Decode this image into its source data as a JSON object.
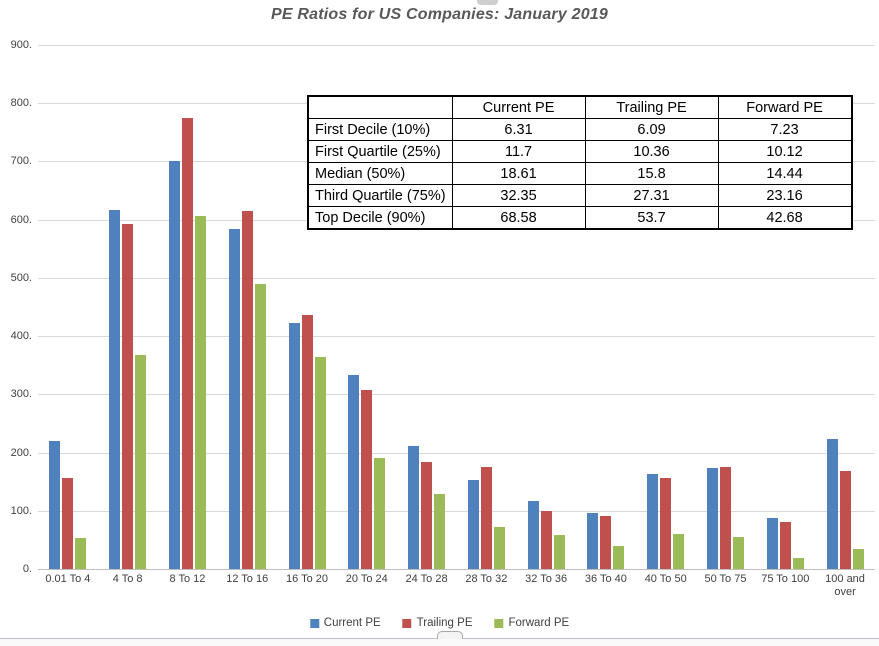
{
  "title": "PE Ratios for US Companies: January 2019",
  "colors": {
    "current_pe": "#4F81BD",
    "trailing_pe": "#C0504D",
    "forward_pe": "#9BBB59",
    "gridline": "#D9D9D9",
    "axis_text": "#404040",
    "title_text": "#595959"
  },
  "chart_data": {
    "type": "bar",
    "title": "PE Ratios for US Companies: January 2019",
    "categories": [
      "0.01 To 4",
      "4 To 8",
      "8 To 12",
      "12 To 16",
      "16 To 20",
      "20 To 24",
      "24 To 28",
      "28 To 32",
      "32 To 36",
      "36 To 40",
      "40 To 50",
      "50 To 75",
      "75 To 100",
      "100 and over"
    ],
    "series": [
      {
        "name": "Current PE",
        "color": "#4F81BD",
        "values": [
          220,
          617,
          700,
          584,
          422,
          333,
          211,
          153,
          116,
          96,
          163,
          174,
          88,
          224
        ]
      },
      {
        "name": "Trailing PE",
        "color": "#C0504D",
        "values": [
          157,
          592,
          774,
          615,
          437,
          308,
          184,
          175,
          100,
          91,
          156,
          176,
          80,
          169
        ]
      },
      {
        "name": "Forward PE",
        "color": "#9BBB59",
        "values": [
          53,
          367,
          607,
          490,
          364,
          190,
          129,
          73,
          58,
          40,
          60,
          55,
          19,
          34
        ]
      }
    ],
    "xlabel": "",
    "ylabel": "",
    "ylim": [
      0,
      900
    ],
    "ytick_step": 100,
    "ytick_labels": [
      "900.",
      "800.",
      "700.",
      "600.",
      "500.",
      "400.",
      "300.",
      "200.",
      "100.",
      "0."
    ],
    "grid": true,
    "legend_position": "bottom"
  },
  "stats_table": {
    "headers": [
      "",
      "Current PE",
      "Trailing PE",
      "Forward PE"
    ],
    "rows": [
      {
        "label": "First Decile (10%)",
        "values": [
          "6.31",
          "6.09",
          "7.23"
        ]
      },
      {
        "label": "First Quartile (25%)",
        "values": [
          "11.7",
          "10.36",
          "10.12"
        ]
      },
      {
        "label": "Median (50%)",
        "values": [
          "18.61",
          "15.8",
          "14.44"
        ]
      },
      {
        "label": "Third Quartile (75%)",
        "values": [
          "32.35",
          "27.31",
          "23.16"
        ]
      },
      {
        "label": "Top Decile (90%)",
        "values": [
          "68.58",
          "53.7",
          "42.68"
        ]
      }
    ]
  },
  "legend": {
    "items": [
      {
        "label": "Current PE",
        "color": "#4F81BD"
      },
      {
        "label": "Trailing PE",
        "color": "#C0504D"
      },
      {
        "label": "Forward PE",
        "color": "#9BBB59"
      }
    ]
  }
}
